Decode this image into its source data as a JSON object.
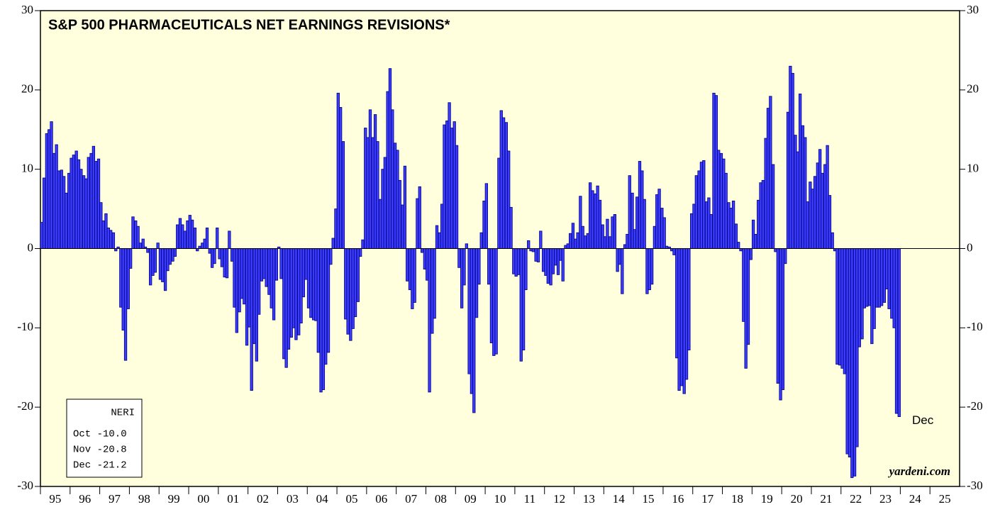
{
  "chart_data": {
    "type": "bar",
    "title": "S&P 500 PHARMACEUTICALS NET EARNINGS REVISIONS*",
    "color": "#3c3cff",
    "edge": "#00007a",
    "background": "#ffffdd",
    "xlim": [
      1995,
      2026
    ],
    "ylim": [
      -30,
      30
    ],
    "yticks": [
      -30,
      -20,
      -10,
      0,
      10,
      20,
      30
    ],
    "xticks": [
      {
        "value": 1995.5,
        "label": "95"
      },
      {
        "value": 1996.5,
        "label": "96"
      },
      {
        "value": 1997.5,
        "label": "97"
      },
      {
        "value": 1998.5,
        "label": "98"
      },
      {
        "value": 1999.5,
        "label": "99"
      },
      {
        "value": 2000.5,
        "label": "00"
      },
      {
        "value": 2001.5,
        "label": "01"
      },
      {
        "value": 2002.5,
        "label": "02"
      },
      {
        "value": 2003.5,
        "label": "03"
      },
      {
        "value": 2004.5,
        "label": "04"
      },
      {
        "value": 2005.5,
        "label": "05"
      },
      {
        "value": 2006.5,
        "label": "06"
      },
      {
        "value": 2007.5,
        "label": "07"
      },
      {
        "value": 2008.5,
        "label": "08"
      },
      {
        "value": 2009.5,
        "label": "09"
      },
      {
        "value": 2010.5,
        "label": "10"
      },
      {
        "value": 2011.5,
        "label": "11"
      },
      {
        "value": 2012.5,
        "label": "12"
      },
      {
        "value": 2013.5,
        "label": "13"
      },
      {
        "value": 2014.5,
        "label": "14"
      },
      {
        "value": 2015.5,
        "label": "15"
      },
      {
        "value": 2016.5,
        "label": "16"
      },
      {
        "value": 2017.5,
        "label": "17"
      },
      {
        "value": 2018.5,
        "label": "18"
      },
      {
        "value": 2019.5,
        "label": "19"
      },
      {
        "value": 2020.5,
        "label": "20"
      },
      {
        "value": 2021.5,
        "label": "21"
      },
      {
        "value": 2022.5,
        "label": "22"
      },
      {
        "value": 2023.5,
        "label": "23"
      },
      {
        "value": 2024.5,
        "label": "24"
      },
      {
        "value": 2025.5,
        "label": "25"
      }
    ],
    "x": [
      1995,
      1995.08,
      1995.17,
      1995.25,
      1995.33,
      1995.42,
      1995.5,
      1995.58,
      1995.67,
      1995.75,
      1995.83,
      1995.92,
      1996,
      1996.08,
      1996.17,
      1996.25,
      1996.33,
      1996.42,
      1996.5,
      1996.58,
      1996.67,
      1996.75,
      1996.83,
      1996.92,
      1997,
      1997.08,
      1997.17,
      1997.25,
      1997.33,
      1997.42,
      1997.5,
      1997.58,
      1997.67,
      1997.75,
      1997.83,
      1997.92,
      1998,
      1998.08,
      1998.17,
      1998.25,
      1998.33,
      1998.42,
      1998.5,
      1998.58,
      1998.67,
      1998.75,
      1998.83,
      1998.92,
      1999,
      1999.08,
      1999.17,
      1999.25,
      1999.33,
      1999.42,
      1999.5,
      1999.58,
      1999.67,
      1999.75,
      1999.83,
      1999.92,
      2000,
      2000.08,
      2000.17,
      2000.25,
      2000.33,
      2000.42,
      2000.5,
      2000.58,
      2000.67,
      2000.75,
      2000.83,
      2000.92,
      2001,
      2001.08,
      2001.17,
      2001.25,
      2001.33,
      2001.42,
      2001.5,
      2001.58,
      2001.67,
      2001.75,
      2001.83,
      2001.92,
      2002,
      2002.08,
      2002.17,
      2002.25,
      2002.33,
      2002.42,
      2002.5,
      2002.58,
      2002.67,
      2002.75,
      2002.83,
      2002.92,
      2003,
      2003.08,
      2003.17,
      2003.25,
      2003.33,
      2003.42,
      2003.5,
      2003.58,
      2003.67,
      2003.75,
      2003.83,
      2003.92,
      2004,
      2004.08,
      2004.17,
      2004.25,
      2004.33,
      2004.42,
      2004.5,
      2004.58,
      2004.67,
      2004.75,
      2004.83,
      2004.92,
      2005,
      2005.08,
      2005.17,
      2005.25,
      2005.33,
      2005.42,
      2005.5,
      2005.58,
      2005.67,
      2005.75,
      2005.83,
      2005.92,
      2006,
      2006.08,
      2006.17,
      2006.25,
      2006.33,
      2006.42,
      2006.5,
      2006.58,
      2006.67,
      2006.75,
      2006.83,
      2006.92,
      2007,
      2007.08,
      2007.17,
      2007.25,
      2007.33,
      2007.42,
      2007.5,
      2007.58,
      2007.67,
      2007.75,
      2007.83,
      2007.92,
      2008,
      2008.08,
      2008.17,
      2008.25,
      2008.33,
      2008.42,
      2008.5,
      2008.58,
      2008.67,
      2008.75,
      2008.83,
      2008.92,
      2009,
      2009.08,
      2009.17,
      2009.25,
      2009.33,
      2009.42,
      2009.5,
      2009.58,
      2009.67,
      2009.75,
      2009.83,
      2009.92,
      2010,
      2010.08,
      2010.17,
      2010.25,
      2010.33,
      2010.42,
      2010.5,
      2010.58,
      2010.67,
      2010.75,
      2010.83,
      2010.92,
      2011,
      2011.08,
      2011.17,
      2011.25,
      2011.33,
      2011.42,
      2011.5,
      2011.58,
      2011.67,
      2011.75,
      2011.83,
      2011.92,
      2012,
      2012.08,
      2012.17,
      2012.25,
      2012.33,
      2012.42,
      2012.5,
      2012.58,
      2012.67,
      2012.75,
      2012.83,
      2012.92,
      2013,
      2013.08,
      2013.17,
      2013.25,
      2013.33,
      2013.42,
      2013.5,
      2013.58,
      2013.67,
      2013.75,
      2013.83,
      2013.92,
      2014,
      2014.08,
      2014.17,
      2014.25,
      2014.33,
      2014.42,
      2014.5,
      2014.58,
      2014.67,
      2014.75,
      2014.83,
      2014.92,
      2015,
      2015.08,
      2015.17,
      2015.25,
      2015.33,
      2015.42,
      2015.5,
      2015.58,
      2015.67,
      2015.75,
      2015.83,
      2015.92,
      2016,
      2016.08,
      2016.17,
      2016.25,
      2016.33,
      2016.42,
      2016.5,
      2016.58,
      2016.67,
      2016.75,
      2016.83,
      2016.92,
      2017,
      2017.08,
      2017.17,
      2017.25,
      2017.33,
      2017.42,
      2017.5,
      2017.58,
      2017.67,
      2017.75,
      2017.83,
      2017.92,
      2018,
      2018.08,
      2018.17,
      2018.25,
      2018.33,
      2018.42,
      2018.5,
      2018.58,
      2018.67,
      2018.75,
      2018.83,
      2018.92,
      2019,
      2019.08,
      2019.17,
      2019.25,
      2019.33,
      2019.42,
      2019.5,
      2019.58,
      2019.67,
      2019.75,
      2019.83,
      2019.92,
      2020,
      2020.08,
      2020.17,
      2020.25,
      2020.33,
      2020.42,
      2020.5,
      2020.58,
      2020.67,
      2020.75,
      2020.83,
      2020.92,
      2021,
      2021.08,
      2021.17,
      2021.25,
      2021.33,
      2021.42,
      2021.5,
      2021.58,
      2021.67,
      2021.75,
      2021.83,
      2021.92,
      2022,
      2022.08,
      2022.17,
      2022.25,
      2022.33,
      2022.42,
      2022.5,
      2022.58,
      2022.67,
      2022.75,
      2022.83,
      2022.92,
      2023,
      2023.08,
      2023.17,
      2023.25,
      2023.33,
      2023.42,
      2023.5,
      2023.58,
      2023.67,
      2023.75,
      2023.83,
      2023.92
    ],
    "values": [
      3.3,
      8.9,
      14.5,
      15.0,
      16.0,
      12.0,
      13.1,
      9.8,
      9.9,
      9.1,
      7.0,
      9.5,
      11.4,
      11.8,
      12.3,
      11.2,
      10.0,
      9.2,
      8.8,
      11.5,
      12.0,
      12.9,
      11.0,
      11.3,
      5.8,
      3.5,
      4.4,
      2.6,
      2.3,
      2.0,
      -0.3,
      0.2,
      -7.4,
      -10.3,
      -14.1,
      -7.6,
      -2.5,
      4.0,
      3.5,
      2.8,
      0.7,
      1.2,
      0.2,
      -0.5,
      -4.6,
      -3.4,
      -3.0,
      0.7,
      -3.9,
      -4.2,
      -5.3,
      -2.8,
      -2.0,
      -1.6,
      -1.0,
      3.0,
      3.8,
      3.0,
      2.2,
      3.5,
      4.2,
      3.6,
      2.6,
      -0.3,
      0.3,
      0.7,
      1.2,
      2.6,
      -0.6,
      -2.4,
      -1.9,
      2.6,
      -1.3,
      -2.3,
      -3.6,
      -3.7,
      2.2,
      -1.6,
      -7.4,
      -10.6,
      -8.0,
      -6.3,
      -7.0,
      -12.2,
      -9.9,
      -17.9,
      -12.0,
      -14.2,
      -8.3,
      -4.1,
      -3.8,
      -4.8,
      -5.8,
      -7.5,
      -9.0,
      -4.0,
      0.2,
      -3.8,
      -13.9,
      -15.0,
      -12.7,
      -11.2,
      -10.0,
      -11.5,
      -10.9,
      -9.4,
      -6.1,
      -3.9,
      -7.5,
      -8.7,
      -9.0,
      -9.1,
      -13.1,
      -18.1,
      -17.8,
      -14.6,
      -13.1,
      -2.0,
      1.3,
      5.0,
      19.6,
      17.8,
      13.5,
      -8.9,
      -10.8,
      -11.6,
      -10.1,
      -8.6,
      -6.7,
      -1.0,
      1.1,
      15.2,
      14.0,
      17.5,
      14.0,
      16.9,
      13.5,
      6.2,
      10.0,
      11.5,
      19.8,
      22.7,
      17.5,
      13.3,
      12.4,
      8.6,
      5.5,
      10.4,
      -4.1,
      -5.2,
      -7.6,
      -6.8,
      6.3,
      7.8,
      -0.5,
      -2.6,
      -4.0,
      -18.1,
      -10.7,
      -8.8,
      2.9,
      2.0,
      5.6,
      15.6,
      16.1,
      18.4,
      15.2,
      16.0,
      13.0,
      -2.4,
      -7.5,
      -4.6,
      0.6,
      -15.8,
      -18.3,
      -20.7,
      -8.7,
      -4.5,
      2.0,
      6.0,
      8.2,
      -4.5,
      -11.9,
      -13.5,
      -13.3,
      11.4,
      17.4,
      16.5,
      15.9,
      12.3,
      5.2,
      -3.2,
      -3.5,
      -3.3,
      -14.2,
      -12.8,
      -5.2,
      1.0,
      -0.3,
      -0.4,
      -1.6,
      -1.7,
      2.2,
      -2.9,
      -3.4,
      -4.4,
      -4.6,
      -3.2,
      -2.1,
      -3.3,
      -1.5,
      -4.1,
      0.4,
      0.6,
      1.9,
      3.2,
      1.2,
      2.0,
      6.6,
      2.8,
      1.6,
      1.9,
      8.3,
      7.3,
      6.9,
      7.9,
      6.1,
      3.0,
      1.5,
      3.7,
      1.5,
      4.0,
      4.3,
      -2.9,
      -2.0,
      -5.7,
      0.5,
      1.8,
      9.2,
      7.0,
      2.4,
      6.5,
      11.0,
      9.8,
      6.2,
      -5.7,
      -5.2,
      -4.5,
      2.8,
      6.8,
      7.5,
      5.1,
      3.9,
      0.3,
      0.2,
      -0.3,
      -0.8,
      -13.8,
      -17.9,
      -17.3,
      -18.3,
      -16.5,
      -12.8,
      4.4,
      5.6,
      9.2,
      9.8,
      10.9,
      11.1,
      5.9,
      6.4,
      4.3,
      19.6,
      19.3,
      12.4,
      12.0,
      11.3,
      9.5,
      5.8,
      5.1,
      6.0,
      3.1,
      0.8,
      -0.3,
      -9.2,
      -15.1,
      -12.1,
      -1.4,
      3.6,
      1.8,
      6.1,
      8.3,
      8.6,
      13.9,
      17.7,
      19.2,
      10.6,
      -0.4,
      -17.0,
      -19.1,
      -17.8,
      -1.9,
      17.2,
      23.0,
      22.1,
      14.3,
      12.2,
      19.5,
      15.5,
      14.0,
      5.9,
      8.4,
      7.5,
      9.1,
      10.8,
      12.5,
      9.5,
      10.6,
      13.0,
      6.7,
      2.0,
      -0.3,
      -14.6,
      -14.7,
      -15.1,
      -15.8,
      -25.9,
      -26.3,
      -28.9,
      -28.7,
      -25.0,
      -12.4,
      -11.4,
      -7.5,
      -7.3,
      -7.2,
      -12.0,
      -10.1,
      -7.4,
      -7.4,
      -7.2,
      -6.8,
      -5.1,
      -7.6,
      -8.8,
      -10.0,
      -20.8,
      -21.2
    ],
    "legend_title": "NERI",
    "legend_rows": [
      "Oct -10.0",
      "Nov -20.8",
      "Dec -21.2"
    ],
    "end_label": "Dec",
    "source": "yardeni.com"
  }
}
